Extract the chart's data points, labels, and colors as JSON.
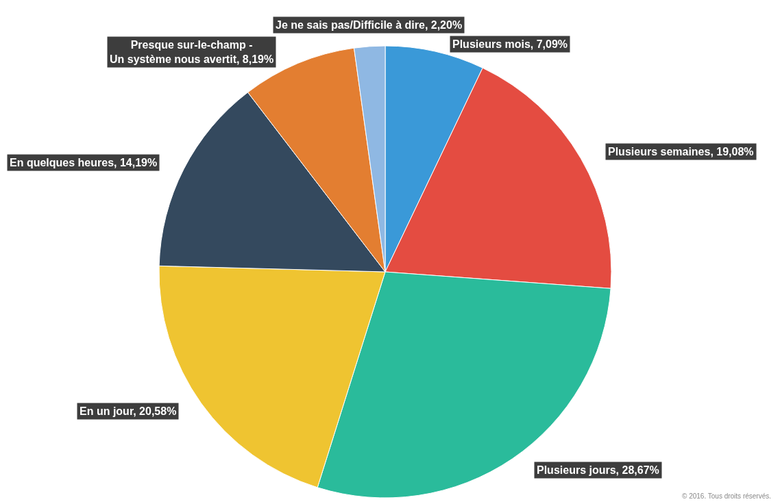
{
  "chart_data": {
    "type": "pie",
    "categories": [
      "Plusieurs mois",
      "Plusieurs semaines",
      "Plusieurs jours",
      "En un jour",
      "En quelques heures",
      "Presque sur-le-champ -\nUn système nous avertit",
      "Je ne sais pas/Difficile à dire"
    ],
    "values": [
      7.09,
      19.08,
      28.67,
      20.58,
      14.19,
      8.19,
      2.2
    ],
    "colors": [
      "#3a99d8",
      "#e44c41",
      "#2abb9b",
      "#efc431",
      "#34495e",
      "#e37e31",
      "#8fb8e3"
    ],
    "value_labels": [
      "7,09%",
      "19,08%",
      "28,67%",
      "20,58%",
      "14,19%",
      "8,19%",
      "2,20%"
    ],
    "legend": false,
    "annotations": [
      "© 2016. Tous droits réservés."
    ]
  }
}
